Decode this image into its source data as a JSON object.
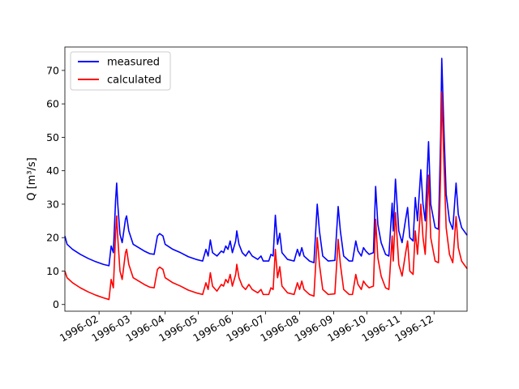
{
  "chart_data": {
    "type": "line",
    "title": "",
    "xlabel": "",
    "ylabel": "Q [m³/s]",
    "xlim": [
      "1996-01-01",
      "1996-12-31"
    ],
    "ylim": [
      -2,
      77
    ],
    "x_tick_labels": [
      "1996-02",
      "1996-03",
      "1996-04",
      "1996-05",
      "1996-06",
      "1996-07",
      "1996-08",
      "1996-09",
      "1996-10",
      "1996-11",
      "1996-12"
    ],
    "x_ticks": [
      "1996-02-01",
      "1996-03-01",
      "1996-04-01",
      "1996-05-01",
      "1996-06-01",
      "1996-07-01",
      "1996-08-01",
      "1996-09-01",
      "1996-10-01",
      "1996-11-01",
      "1996-12-01"
    ],
    "y_ticks": [
      0,
      10,
      20,
      30,
      40,
      50,
      60,
      70
    ],
    "grid": false,
    "legend_position": "top-left",
    "series": [
      {
        "name": "measured",
        "color": "#0000ff",
        "points": [
          [
            "1996-01-01",
            20.5
          ],
          [
            "1996-01-03",
            18.0
          ],
          [
            "1996-01-08",
            16.5
          ],
          [
            "1996-01-15",
            15.0
          ],
          [
            "1996-01-22",
            13.8
          ],
          [
            "1996-01-29",
            12.8
          ],
          [
            "1996-02-05",
            12.0
          ],
          [
            "1996-02-10",
            11.6
          ],
          [
            "1996-02-12",
            17.5
          ],
          [
            "1996-02-14",
            15.5
          ],
          [
            "1996-02-16",
            31.0
          ],
          [
            "1996-02-17",
            36.3
          ],
          [
            "1996-02-18",
            30.0
          ],
          [
            "1996-02-20",
            21.0
          ],
          [
            "1996-02-22",
            18.5
          ],
          [
            "1996-02-25",
            25.5
          ],
          [
            "1996-02-26",
            26.5
          ],
          [
            "1996-02-28",
            22.0
          ],
          [
            "1996-03-03",
            18.0
          ],
          [
            "1996-03-08",
            17.0
          ],
          [
            "1996-03-13",
            16.0
          ],
          [
            "1996-03-18",
            15.2
          ],
          [
            "1996-03-22",
            15.0
          ],
          [
            "1996-03-25",
            20.5
          ],
          [
            "1996-03-27",
            21.2
          ],
          [
            "1996-03-30",
            20.5
          ],
          [
            "1996-04-01",
            18.0
          ],
          [
            "1996-04-08",
            16.5
          ],
          [
            "1996-04-15",
            15.5
          ],
          [
            "1996-04-22",
            14.3
          ],
          [
            "1996-04-29",
            13.5
          ],
          [
            "1996-05-05",
            13.0
          ],
          [
            "1996-05-08",
            16.5
          ],
          [
            "1996-05-10",
            14.5
          ],
          [
            "1996-05-12",
            19.3
          ],
          [
            "1996-05-14",
            15.5
          ],
          [
            "1996-05-18",
            14.5
          ],
          [
            "1996-05-22",
            16.0
          ],
          [
            "1996-05-24",
            15.5
          ],
          [
            "1996-05-26",
            17.5
          ],
          [
            "1996-05-28",
            16.5
          ],
          [
            "1996-05-30",
            19.0
          ],
          [
            "1996-06-01",
            15.5
          ],
          [
            "1996-06-04",
            19.0
          ],
          [
            "1996-06-05",
            22.0
          ],
          [
            "1996-06-07",
            18.0
          ],
          [
            "1996-06-10",
            15.5
          ],
          [
            "1996-06-13",
            14.5
          ],
          [
            "1996-06-16",
            16.0
          ],
          [
            "1996-06-19",
            14.5
          ],
          [
            "1996-06-24",
            13.5
          ],
          [
            "1996-06-27",
            14.5
          ],
          [
            "1996-06-29",
            13.0
          ],
          [
            "1996-07-04",
            13.0
          ],
          [
            "1996-07-06",
            15.0
          ],
          [
            "1996-07-08",
            14.5
          ],
          [
            "1996-07-10",
            26.7
          ],
          [
            "1996-07-12",
            18.0
          ],
          [
            "1996-07-14",
            21.3
          ],
          [
            "1996-07-16",
            15.5
          ],
          [
            "1996-07-21",
            13.5
          ],
          [
            "1996-07-27",
            13.0
          ],
          [
            "1996-07-30",
            16.5
          ],
          [
            "1996-08-01",
            14.5
          ],
          [
            "1996-08-03",
            17.0
          ],
          [
            "1996-08-05",
            14.5
          ],
          [
            "1996-08-10",
            13.0
          ],
          [
            "1996-08-14",
            12.5
          ],
          [
            "1996-08-17",
            30.0
          ],
          [
            "1996-08-19",
            22.0
          ],
          [
            "1996-08-22",
            14.5
          ],
          [
            "1996-08-27",
            13.0
          ],
          [
            "1996-09-02",
            13.2
          ],
          [
            "1996-09-05",
            29.3
          ],
          [
            "1996-09-07",
            22.0
          ],
          [
            "1996-09-10",
            14.5
          ],
          [
            "1996-09-15",
            13.0
          ],
          [
            "1996-09-18",
            13.0
          ],
          [
            "1996-09-21",
            19.0
          ],
          [
            "1996-09-23",
            16.0
          ],
          [
            "1996-09-26",
            14.5
          ],
          [
            "1996-09-28",
            17.0
          ],
          [
            "1996-09-30",
            16.0
          ],
          [
            "1996-10-03",
            15.0
          ],
          [
            "1996-10-07",
            15.5
          ],
          [
            "1996-10-09",
            35.3
          ],
          [
            "1996-10-11",
            24.0
          ],
          [
            "1996-10-14",
            18.5
          ],
          [
            "1996-10-18",
            15.0
          ],
          [
            "1996-10-21",
            14.5
          ],
          [
            "1996-10-24",
            30.3
          ],
          [
            "1996-10-25",
            22.0
          ],
          [
            "1996-10-27",
            37.5
          ],
          [
            "1996-10-30",
            22.0
          ],
          [
            "1996-11-02",
            18.5
          ],
          [
            "1996-11-05",
            25.0
          ],
          [
            "1996-11-07",
            29.0
          ],
          [
            "1996-11-09",
            20.0
          ],
          [
            "1996-11-12",
            19.0
          ],
          [
            "1996-11-14",
            32.0
          ],
          [
            "1996-11-16",
            25.0
          ],
          [
            "1996-11-19",
            40.3
          ],
          [
            "1996-11-21",
            30.0
          ],
          [
            "1996-11-23",
            25.0
          ],
          [
            "1996-11-26",
            48.7
          ],
          [
            "1996-11-28",
            30.0
          ],
          [
            "1996-12-02",
            23.0
          ],
          [
            "1996-12-05",
            22.5
          ],
          [
            "1996-12-07",
            50.0
          ],
          [
            "1996-12-08",
            73.6
          ],
          [
            "1996-12-10",
            52.0
          ],
          [
            "1996-12-12",
            33.0
          ],
          [
            "1996-12-15",
            25.0
          ],
          [
            "1996-12-18",
            22.5
          ],
          [
            "1996-12-21",
            36.3
          ],
          [
            "1996-12-23",
            27.0
          ],
          [
            "1996-12-26",
            23.0
          ],
          [
            "1996-12-31",
            20.7
          ]
        ]
      },
      {
        "name": "calculated",
        "color": "#ff0000",
        "points": [
          [
            "1996-01-01",
            10.0
          ],
          [
            "1996-01-03",
            8.0
          ],
          [
            "1996-01-08",
            6.5
          ],
          [
            "1996-01-15",
            5.0
          ],
          [
            "1996-01-22",
            3.8
          ],
          [
            "1996-01-29",
            2.8
          ],
          [
            "1996-02-05",
            2.0
          ],
          [
            "1996-02-10",
            1.5
          ],
          [
            "1996-02-12",
            7.5
          ],
          [
            "1996-02-14",
            5.0
          ],
          [
            "1996-02-16",
            21.0
          ],
          [
            "1996-02-17",
            26.5
          ],
          [
            "1996-02-18",
            20.0
          ],
          [
            "1996-02-20",
            10.0
          ],
          [
            "1996-02-22",
            7.5
          ],
          [
            "1996-02-25",
            15.5
          ],
          [
            "1996-02-26",
            16.5
          ],
          [
            "1996-02-28",
            12.0
          ],
          [
            "1996-03-03",
            8.0
          ],
          [
            "1996-03-08",
            7.0
          ],
          [
            "1996-03-13",
            6.0
          ],
          [
            "1996-03-18",
            5.2
          ],
          [
            "1996-03-22",
            5.0
          ],
          [
            "1996-03-25",
            10.5
          ],
          [
            "1996-03-27",
            11.2
          ],
          [
            "1996-03-30",
            10.5
          ],
          [
            "1996-04-01",
            8.0
          ],
          [
            "1996-04-08",
            6.5
          ],
          [
            "1996-04-15",
            5.5
          ],
          [
            "1996-04-22",
            4.3
          ],
          [
            "1996-04-29",
            3.5
          ],
          [
            "1996-05-05",
            3.0
          ],
          [
            "1996-05-08",
            6.5
          ],
          [
            "1996-05-10",
            4.5
          ],
          [
            "1996-05-12",
            9.5
          ],
          [
            "1996-05-14",
            5.5
          ],
          [
            "1996-05-18",
            4.0
          ],
          [
            "1996-05-22",
            6.0
          ],
          [
            "1996-05-24",
            5.5
          ],
          [
            "1996-05-26",
            7.5
          ],
          [
            "1996-05-28",
            6.5
          ],
          [
            "1996-05-30",
            9.0
          ],
          [
            "1996-06-01",
            5.5
          ],
          [
            "1996-06-04",
            9.0
          ],
          [
            "1996-06-05",
            12.0
          ],
          [
            "1996-06-07",
            8.0
          ],
          [
            "1996-06-10",
            5.5
          ],
          [
            "1996-06-13",
            4.5
          ],
          [
            "1996-06-16",
            6.0
          ],
          [
            "1996-06-19",
            4.5
          ],
          [
            "1996-06-24",
            3.5
          ],
          [
            "1996-06-27",
            4.5
          ],
          [
            "1996-06-29",
            3.0
          ],
          [
            "1996-07-04",
            3.0
          ],
          [
            "1996-07-06",
            5.0
          ],
          [
            "1996-07-08",
            4.5
          ],
          [
            "1996-07-10",
            16.5
          ],
          [
            "1996-07-12",
            8.0
          ],
          [
            "1996-07-14",
            11.3
          ],
          [
            "1996-07-16",
            5.5
          ],
          [
            "1996-07-21",
            3.5
          ],
          [
            "1996-07-27",
            3.0
          ],
          [
            "1996-07-30",
            6.5
          ],
          [
            "1996-08-01",
            4.5
          ],
          [
            "1996-08-03",
            7.0
          ],
          [
            "1996-08-05",
            4.5
          ],
          [
            "1996-08-10",
            3.0
          ],
          [
            "1996-08-14",
            2.5
          ],
          [
            "1996-08-17",
            20.0
          ],
          [
            "1996-08-19",
            12.0
          ],
          [
            "1996-08-22",
            4.5
          ],
          [
            "1996-08-27",
            3.0
          ],
          [
            "1996-09-02",
            3.2
          ],
          [
            "1996-09-05",
            19.5
          ],
          [
            "1996-09-07",
            12.0
          ],
          [
            "1996-09-10",
            4.5
          ],
          [
            "1996-09-15",
            3.0
          ],
          [
            "1996-09-18",
            3.0
          ],
          [
            "1996-09-21",
            9.0
          ],
          [
            "1996-09-23",
            6.0
          ],
          [
            "1996-09-26",
            4.5
          ],
          [
            "1996-09-28",
            7.0
          ],
          [
            "1996-09-30",
            6.0
          ],
          [
            "1996-10-03",
            5.0
          ],
          [
            "1996-10-07",
            5.5
          ],
          [
            "1996-10-09",
            25.5
          ],
          [
            "1996-10-11",
            14.0
          ],
          [
            "1996-10-14",
            8.5
          ],
          [
            "1996-10-18",
            5.0
          ],
          [
            "1996-10-21",
            4.5
          ],
          [
            "1996-10-24",
            20.5
          ],
          [
            "1996-10-25",
            13.0
          ],
          [
            "1996-10-27",
            27.5
          ],
          [
            "1996-10-30",
            12.0
          ],
          [
            "1996-11-02",
            8.5
          ],
          [
            "1996-11-05",
            15.0
          ],
          [
            "1996-11-07",
            19.0
          ],
          [
            "1996-11-09",
            10.0
          ],
          [
            "1996-11-12",
            9.0
          ],
          [
            "1996-11-14",
            22.0
          ],
          [
            "1996-11-16",
            15.0
          ],
          [
            "1996-11-19",
            30.0
          ],
          [
            "1996-11-21",
            20.0
          ],
          [
            "1996-11-23",
            15.0
          ],
          [
            "1996-11-26",
            38.7
          ],
          [
            "1996-11-28",
            20.0
          ],
          [
            "1996-12-02",
            13.0
          ],
          [
            "1996-12-05",
            12.5
          ],
          [
            "1996-12-07",
            40.0
          ],
          [
            "1996-12-08",
            63.6
          ],
          [
            "1996-12-10",
            42.0
          ],
          [
            "1996-12-12",
            23.0
          ],
          [
            "1996-12-15",
            15.0
          ],
          [
            "1996-12-18",
            12.5
          ],
          [
            "1996-12-21",
            26.3
          ],
          [
            "1996-12-23",
            17.0
          ],
          [
            "1996-12-26",
            13.0
          ],
          [
            "1996-12-31",
            10.7
          ]
        ]
      }
    ]
  }
}
